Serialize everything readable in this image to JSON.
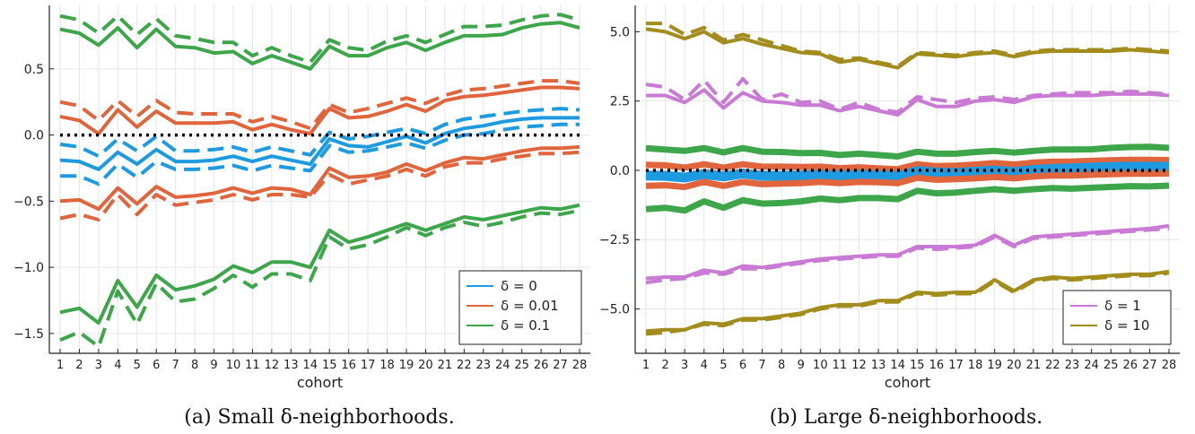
{
  "colors": {
    "d0": "#1e9be0",
    "d001": "#e0643c",
    "d01": "#3ea64a",
    "d1": "#c97ad4",
    "d10": "#a28c1c",
    "zero": "#000000",
    "grid": "#e6e6e6"
  },
  "chart_data": [
    {
      "type": "line",
      "caption": "(a) Small δ-neighborhoods.",
      "xlabel": "cohort",
      "ylabel": "",
      "x": [
        1,
        2,
        3,
        4,
        5,
        6,
        7,
        8,
        9,
        10,
        11,
        12,
        13,
        14,
        15,
        16,
        17,
        18,
        19,
        20,
        21,
        22,
        23,
        24,
        25,
        26,
        27,
        28
      ],
      "xticks": [
        "1",
        "2",
        "3",
        "4",
        "5",
        "6",
        "7",
        "8",
        "9",
        "10",
        "11",
        "12",
        "13",
        "14",
        "15",
        "16",
        "17",
        "18",
        "19",
        "20",
        "21",
        "22",
        "23",
        "24",
        "25",
        "26",
        "27",
        "28"
      ],
      "ylim": [
        -1.65,
        0.98
      ],
      "yticks": [
        0.5,
        0.0,
        -0.5,
        -1.0,
        -1.5
      ],
      "ytick_labels": [
        "0.5",
        "0.0",
        "−0.5",
        "−1.0",
        "−1.5"
      ],
      "grid": true,
      "legend_position": "bottom-right",
      "legend": [
        {
          "label": "δ = 0",
          "color_key": "d0"
        },
        {
          "label": "δ = 0.01",
          "color_key": "d001"
        },
        {
          "label": "δ = 0.1",
          "color_key": "d01"
        }
      ],
      "series": [
        {
          "color_key": "d01",
          "style": "solid",
          "width": 4,
          "values": [
            0.8,
            0.77,
            0.68,
            0.81,
            0.66,
            0.8,
            0.67,
            0.66,
            0.62,
            0.63,
            0.54,
            0.6,
            0.55,
            0.5,
            0.67,
            0.6,
            0.6,
            0.66,
            0.7,
            0.64,
            0.7,
            0.75,
            0.75,
            0.76,
            0.81,
            0.84,
            0.85,
            0.81
          ]
        },
        {
          "color_key": "d01",
          "style": "dashed",
          "width": 4,
          "values": [
            0.9,
            0.87,
            0.77,
            0.9,
            0.76,
            0.88,
            0.75,
            0.73,
            0.7,
            0.7,
            0.6,
            0.66,
            0.6,
            0.55,
            0.72,
            0.66,
            0.64,
            0.71,
            0.75,
            0.7,
            0.76,
            0.82,
            0.82,
            0.83,
            0.87,
            0.9,
            0.91,
            0.87
          ]
        },
        {
          "color_key": "d001",
          "style": "solid",
          "width": 4,
          "values": [
            0.14,
            0.11,
            0.01,
            0.19,
            0.06,
            0.18,
            0.09,
            0.09,
            0.09,
            0.1,
            0.04,
            0.08,
            0.04,
            0.01,
            0.2,
            0.13,
            0.14,
            0.18,
            0.23,
            0.18,
            0.26,
            0.29,
            0.3,
            0.32,
            0.34,
            0.36,
            0.36,
            0.35
          ]
        },
        {
          "color_key": "d001",
          "style": "dashed",
          "width": 4,
          "values": [
            0.25,
            0.22,
            0.11,
            0.26,
            0.14,
            0.26,
            0.17,
            0.16,
            0.16,
            0.16,
            0.1,
            0.14,
            0.1,
            0.05,
            0.23,
            0.17,
            0.2,
            0.24,
            0.28,
            0.24,
            0.3,
            0.34,
            0.35,
            0.37,
            0.39,
            0.41,
            0.41,
            0.39
          ]
        },
        {
          "color_key": "d0",
          "style": "solid",
          "width": 4,
          "values": [
            -0.19,
            -0.2,
            -0.26,
            -0.13,
            -0.22,
            -0.11,
            -0.2,
            -0.2,
            -0.19,
            -0.16,
            -0.2,
            -0.16,
            -0.19,
            -0.22,
            -0.03,
            -0.08,
            -0.09,
            -0.05,
            -0.01,
            -0.06,
            0.01,
            0.05,
            0.07,
            0.1,
            0.12,
            0.13,
            0.13,
            0.13
          ]
        },
        {
          "color_key": "d0",
          "style": "dashed",
          "width": 4,
          "values": [
            -0.07,
            -0.09,
            -0.16,
            -0.03,
            -0.12,
            -0.01,
            -0.12,
            -0.12,
            -0.11,
            -0.09,
            -0.13,
            -0.09,
            -0.12,
            -0.15,
            0.02,
            -0.03,
            -0.01,
            0.02,
            0.05,
            0.01,
            0.08,
            0.12,
            0.14,
            0.16,
            0.18,
            0.19,
            0.2,
            0.19
          ]
        },
        {
          "color_key": "d0",
          "style": "dashed",
          "width": 4,
          "values": [
            -0.31,
            -0.31,
            -0.37,
            -0.22,
            -0.32,
            -0.2,
            -0.26,
            -0.26,
            -0.25,
            -0.23,
            -0.27,
            -0.23,
            -0.25,
            -0.27,
            -0.08,
            -0.13,
            -0.12,
            -0.09,
            -0.06,
            -0.1,
            -0.04,
            0.0,
            0.01,
            0.04,
            0.06,
            0.07,
            0.08,
            0.08
          ]
        },
        {
          "color_key": "d001",
          "style": "solid",
          "width": 4,
          "values": [
            -0.5,
            -0.49,
            -0.56,
            -0.4,
            -0.52,
            -0.39,
            -0.47,
            -0.46,
            -0.44,
            -0.4,
            -0.44,
            -0.4,
            -0.41,
            -0.45,
            -0.25,
            -0.32,
            -0.31,
            -0.28,
            -0.22,
            -0.27,
            -0.21,
            -0.17,
            -0.18,
            -0.15,
            -0.12,
            -0.1,
            -0.1,
            -0.09
          ]
        },
        {
          "color_key": "d001",
          "style": "dashed",
          "width": 4,
          "values": [
            -0.63,
            -0.6,
            -0.64,
            -0.45,
            -0.6,
            -0.45,
            -0.53,
            -0.51,
            -0.49,
            -0.45,
            -0.49,
            -0.45,
            -0.45,
            -0.47,
            -0.3,
            -0.37,
            -0.34,
            -0.31,
            -0.26,
            -0.31,
            -0.24,
            -0.21,
            -0.21,
            -0.18,
            -0.16,
            -0.14,
            -0.14,
            -0.13
          ]
        },
        {
          "color_key": "d01",
          "style": "solid",
          "width": 4,
          "values": [
            -1.34,
            -1.31,
            -1.42,
            -1.1,
            -1.3,
            -1.06,
            -1.17,
            -1.14,
            -1.09,
            -0.99,
            -1.04,
            -0.96,
            -0.96,
            -1.0,
            -0.72,
            -0.81,
            -0.77,
            -0.72,
            -0.67,
            -0.72,
            -0.67,
            -0.62,
            -0.64,
            -0.61,
            -0.58,
            -0.55,
            -0.56,
            -0.53
          ]
        },
        {
          "color_key": "d01",
          "style": "dashed",
          "width": 4,
          "values": [
            -1.55,
            -1.49,
            -1.6,
            -1.18,
            -1.43,
            -1.12,
            -1.26,
            -1.24,
            -1.16,
            -1.06,
            -1.15,
            -1.05,
            -1.05,
            -1.1,
            -0.77,
            -0.86,
            -0.83,
            -0.77,
            -0.7,
            -0.76,
            -0.7,
            -0.66,
            -0.69,
            -0.66,
            -0.62,
            -0.59,
            -0.6,
            -0.57
          ]
        },
        {
          "color_key": "zero",
          "style": "dotted",
          "width": 4,
          "values": [
            0,
            0,
            0,
            0,
            0,
            0,
            0,
            0,
            0,
            0,
            0,
            0,
            0,
            0,
            0,
            0,
            0,
            0,
            0,
            0,
            0,
            0,
            0,
            0,
            0,
            0,
            0,
            0
          ]
        }
      ]
    },
    {
      "type": "line",
      "caption": "(b) Large δ-neighborhoods.",
      "xlabel": "cohort",
      "ylabel": "",
      "x": [
        1,
        2,
        3,
        4,
        5,
        6,
        7,
        8,
        9,
        10,
        11,
        12,
        13,
        14,
        15,
        16,
        17,
        18,
        19,
        20,
        21,
        22,
        23,
        24,
        25,
        26,
        27,
        28
      ],
      "xticks": [
        "1",
        "2",
        "3",
        "4",
        "5",
        "6",
        "7",
        "8",
        "9",
        "10",
        "11",
        "12",
        "13",
        "14",
        "15",
        "16",
        "17",
        "18",
        "19",
        "20",
        "21",
        "22",
        "23",
        "24",
        "25",
        "26",
        "27",
        "28"
      ],
      "ylim": [
        -6.6,
        5.95
      ],
      "yticks": [
        5.0,
        2.5,
        0.0,
        -2.5,
        -5.0
      ],
      "ytick_labels": [
        "5.0",
        "2.5",
        "0.0",
        "−2.5",
        "−5.0"
      ],
      "grid": true,
      "legend_position": "bottom-right",
      "legend": [
        {
          "label": "δ = 1",
          "color_key": "d1"
        },
        {
          "label": "δ = 10",
          "color_key": "d10"
        }
      ],
      "series": [
        {
          "color_key": "d10",
          "style": "solid",
          "width": 4,
          "values": [
            5.1,
            5.0,
            4.75,
            5.0,
            4.6,
            4.75,
            4.55,
            4.4,
            4.25,
            4.2,
            3.9,
            4.0,
            3.85,
            3.7,
            4.2,
            4.15,
            4.1,
            4.2,
            4.25,
            4.1,
            4.25,
            4.3,
            4.3,
            4.3,
            4.3,
            4.35,
            4.3,
            4.25
          ]
        },
        {
          "color_key": "d10",
          "style": "dashed",
          "width": 4,
          "values": [
            5.3,
            5.3,
            4.9,
            5.15,
            4.7,
            4.9,
            4.7,
            4.5,
            4.3,
            4.25,
            4.0,
            4.05,
            3.9,
            3.75,
            4.25,
            4.2,
            4.15,
            4.25,
            4.3,
            4.15,
            4.3,
            4.35,
            4.35,
            4.35,
            4.35,
            4.4,
            4.35,
            4.3
          ]
        },
        {
          "color_key": "d1",
          "style": "solid",
          "width": 4,
          "values": [
            2.7,
            2.7,
            2.45,
            2.9,
            2.25,
            2.8,
            2.5,
            2.45,
            2.35,
            2.35,
            2.15,
            2.3,
            2.15,
            2.0,
            2.55,
            2.3,
            2.3,
            2.5,
            2.55,
            2.45,
            2.65,
            2.7,
            2.7,
            2.7,
            2.75,
            2.75,
            2.75,
            2.7
          ]
        },
        {
          "color_key": "d1",
          "style": "dashed",
          "width": 4,
          "values": [
            3.1,
            3.0,
            2.55,
            3.25,
            2.45,
            3.3,
            2.55,
            2.75,
            2.45,
            2.5,
            2.2,
            2.45,
            2.2,
            2.1,
            2.65,
            2.55,
            2.45,
            2.6,
            2.65,
            2.55,
            2.7,
            2.75,
            2.8,
            2.8,
            2.8,
            2.85,
            2.8,
            2.75
          ]
        },
        {
          "color_key": "d01",
          "style": "solid",
          "width": 7,
          "values": [
            0.8,
            0.75,
            0.7,
            0.8,
            0.65,
            0.8,
            0.67,
            0.66,
            0.62,
            0.63,
            0.55,
            0.6,
            0.55,
            0.5,
            0.67,
            0.6,
            0.6,
            0.66,
            0.7,
            0.64,
            0.7,
            0.75,
            0.75,
            0.76,
            0.81,
            0.84,
            0.85,
            0.81
          ]
        },
        {
          "color_key": "d001",
          "style": "solid",
          "width": 7,
          "values": [
            0.2,
            0.18,
            0.1,
            0.22,
            0.1,
            0.22,
            0.13,
            0.13,
            0.12,
            0.13,
            0.08,
            0.11,
            0.07,
            0.04,
            0.22,
            0.15,
            0.17,
            0.21,
            0.26,
            0.21,
            0.28,
            0.31,
            0.32,
            0.34,
            0.36,
            0.38,
            0.38,
            0.37
          ]
        },
        {
          "color_key": "d0",
          "style": "solid",
          "width": 11,
          "values": [
            -0.19,
            -0.2,
            -0.26,
            -0.13,
            -0.22,
            -0.11,
            -0.2,
            -0.2,
            -0.19,
            -0.16,
            -0.2,
            -0.16,
            -0.19,
            -0.22,
            -0.03,
            -0.08,
            -0.09,
            -0.05,
            -0.01,
            -0.06,
            0.01,
            0.05,
            0.07,
            0.1,
            0.12,
            0.13,
            0.13,
            0.13
          ]
        },
        {
          "color_key": "d001",
          "style": "solid",
          "width": 7,
          "values": [
            -0.56,
            -0.54,
            -0.6,
            -0.42,
            -0.56,
            -0.42,
            -0.5,
            -0.48,
            -0.46,
            -0.42,
            -0.46,
            -0.42,
            -0.43,
            -0.46,
            -0.27,
            -0.34,
            -0.32,
            -0.29,
            -0.24,
            -0.29,
            -0.22,
            -0.19,
            -0.19,
            -0.16,
            -0.14,
            -0.12,
            -0.12,
            -0.11
          ]
        },
        {
          "color_key": "d01",
          "style": "solid",
          "width": 7,
          "values": [
            -1.4,
            -1.35,
            -1.45,
            -1.12,
            -1.35,
            -1.08,
            -1.2,
            -1.18,
            -1.12,
            -1.02,
            -1.08,
            -1.0,
            -1.0,
            -1.04,
            -0.74,
            -0.83,
            -0.8,
            -0.74,
            -0.68,
            -0.74,
            -0.68,
            -0.64,
            -0.66,
            -0.63,
            -0.6,
            -0.57,
            -0.58,
            -0.55
          ]
        },
        {
          "color_key": "d1",
          "style": "solid",
          "width": 4,
          "values": [
            -3.9,
            -3.85,
            -3.85,
            -3.6,
            -3.7,
            -3.45,
            -3.5,
            -3.4,
            -3.3,
            -3.2,
            -3.15,
            -3.1,
            -3.05,
            -3.05,
            -2.75,
            -2.75,
            -2.75,
            -2.7,
            -2.35,
            -2.7,
            -2.4,
            -2.35,
            -2.3,
            -2.25,
            -2.2,
            -2.15,
            -2.1,
            -2.0
          ]
        },
        {
          "color_key": "d1",
          "style": "dashed",
          "width": 4,
          "values": [
            -4.05,
            -3.95,
            -3.9,
            -3.7,
            -3.75,
            -3.55,
            -3.55,
            -3.45,
            -3.35,
            -3.25,
            -3.2,
            -3.15,
            -3.1,
            -3.1,
            -2.8,
            -2.85,
            -2.8,
            -2.75,
            -2.4,
            -2.75,
            -2.45,
            -2.4,
            -2.35,
            -2.3,
            -2.25,
            -2.2,
            -2.15,
            -2.1
          ]
        },
        {
          "color_key": "d10",
          "style": "solid",
          "width": 4,
          "values": [
            -5.8,
            -5.75,
            -5.75,
            -5.5,
            -5.55,
            -5.35,
            -5.35,
            -5.25,
            -5.15,
            -4.95,
            -4.85,
            -4.85,
            -4.7,
            -4.7,
            -4.4,
            -4.45,
            -4.4,
            -4.4,
            -3.95,
            -4.35,
            -3.95,
            -3.85,
            -3.9,
            -3.85,
            -3.8,
            -3.75,
            -3.75,
            -3.65
          ]
        },
        {
          "color_key": "d10",
          "style": "dashed",
          "width": 4,
          "values": [
            -5.9,
            -5.85,
            -5.75,
            -5.55,
            -5.6,
            -5.4,
            -5.4,
            -5.3,
            -5.2,
            -5.0,
            -4.9,
            -4.9,
            -4.75,
            -4.75,
            -4.45,
            -4.5,
            -4.45,
            -4.45,
            -4.0,
            -4.4,
            -4.0,
            -3.9,
            -3.95,
            -3.9,
            -3.85,
            -3.8,
            -3.8,
            -3.7
          ]
        },
        {
          "color_key": "zero",
          "style": "dotted",
          "width": 4,
          "values": [
            0,
            0,
            0,
            0,
            0,
            0,
            0,
            0,
            0,
            0,
            0,
            0,
            0,
            0,
            0,
            0,
            0,
            0,
            0,
            0,
            0,
            0,
            0,
            0,
            0,
            0,
            0,
            0
          ]
        }
      ]
    }
  ]
}
